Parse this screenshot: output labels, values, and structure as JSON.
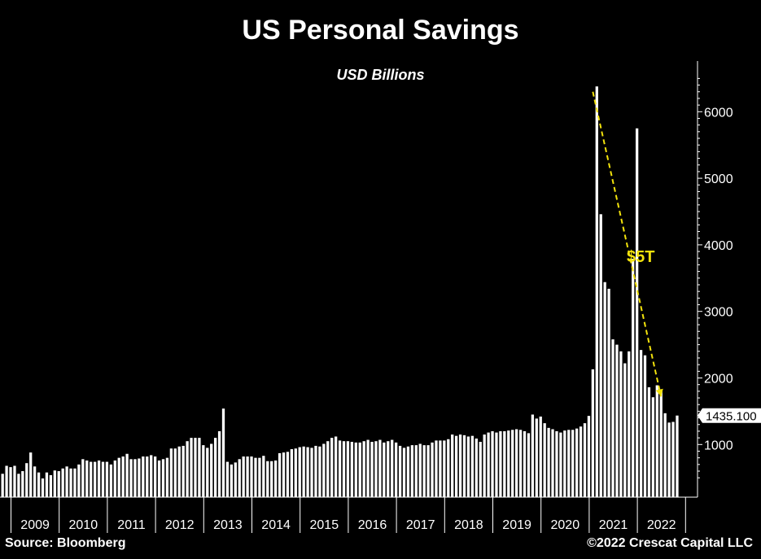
{
  "chart_data": {
    "type": "bar",
    "title": "US Personal Savings",
    "subtitle": "USD Billions",
    "ylabel": "",
    "xlabel": "",
    "ylim": [
      0,
      6600
    ],
    "yticks": [
      1000,
      2000,
      3000,
      4000,
      5000,
      6000
    ],
    "xticks": [
      "2009",
      "2010",
      "2011",
      "2012",
      "2013",
      "2014",
      "2015",
      "2016",
      "2017",
      "2018",
      "2019",
      "2020",
      "2021",
      "2022"
    ],
    "start": "2008-09",
    "values": [
      390,
      560,
      680,
      660,
      680,
      560,
      600,
      720,
      880,
      670,
      580,
      490,
      580,
      540,
      610,
      600,
      640,
      670,
      640,
      640,
      700,
      780,
      760,
      740,
      740,
      760,
      740,
      740,
      700,
      760,
      800,
      820,
      860,
      780,
      780,
      790,
      820,
      820,
      840,
      820,
      760,
      780,
      800,
      940,
      940,
      970,
      980,
      1050,
      1100,
      1100,
      1100,
      990,
      950,
      1010,
      1100,
      1200,
      1540,
      740,
      700,
      730,
      780,
      820,
      820,
      820,
      800,
      800,
      830,
      750,
      750,
      760,
      870,
      880,
      890,
      930,
      940,
      960,
      970,
      960,
      950,
      980,
      970,
      1010,
      1050,
      1100,
      1120,
      1060,
      1050,
      1050,
      1040,
      1030,
      1030,
      1050,
      1070,
      1040,
      1050,
      1070,
      1030,
      1050,
      1070,
      1030,
      980,
      950,
      970,
      990,
      990,
      1010,
      990,
      990,
      1030,
      1060,
      1060,
      1060,
      1080,
      1150,
      1130,
      1150,
      1140,
      1120,
      1130,
      1090,
      1040,
      1150,
      1180,
      1200,
      1180,
      1200,
      1200,
      1210,
      1220,
      1230,
      1220,
      1200,
      1170,
      1450,
      1390,
      1420,
      1320,
      1250,
      1230,
      1200,
      1180,
      1210,
      1220,
      1220,
      1240,
      1270,
      1320,
      1430,
      2130,
      6380,
      4460,
      3440,
      3340,
      2580,
      2500,
      2400,
      2220,
      2400,
      3790,
      5750,
      2420,
      2340,
      1860,
      1710,
      1890,
      1800,
      1470,
      1330,
      1340,
      1435.1
    ],
    "last_value_label": "1435.100",
    "annotation": "$5T",
    "trend_line": {
      "from": {
        "index": 148,
        "value": 6300
      },
      "to": {
        "index": 165,
        "value": 1720
      },
      "color": "#f2e20c"
    }
  },
  "source": "Source: Bloomberg",
  "copyright": "©2022 Crescat Capital LLC",
  "colors": {
    "bar": "#ffffff",
    "background": "#000000",
    "annotation": "#f2e20c"
  }
}
